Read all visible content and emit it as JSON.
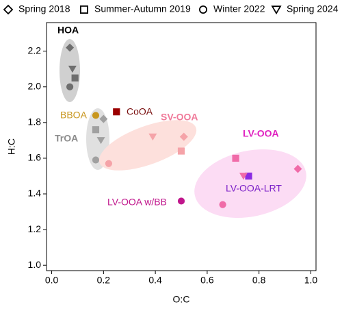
{
  "chart_data": {
    "type": "scatter",
    "xlabel": "O:C",
    "ylabel": "H:C",
    "xlim": [
      -0.02,
      1.02
    ],
    "ylim": [
      0.97,
      2.36
    ],
    "xticks": [
      {
        "value": 0,
        "label": "0.0"
      },
      0.2,
      0.4,
      0.6,
      0.8,
      {
        "value": 1,
        "label": "1.0"
      }
    ],
    "yticks": [
      {
        "value": 1,
        "label": "1.0"
      },
      1.2,
      1.4,
      1.6,
      1.8,
      {
        "value": 2,
        "label": "2.0"
      },
      2.2
    ],
    "series": [
      {
        "name": "Spring 2018",
        "marker": "diamond",
        "x": [
          0.07,
          0.2,
          0.51,
          0.95
        ],
        "y": [
          2.22,
          1.82,
          1.72,
          1.54
        ],
        "colors": [
          "#6e6e6e",
          "#a0a0a0",
          "#f5a3a8",
          "#f06ba8"
        ]
      },
      {
        "name": "Summer-Autumn 2019",
        "marker": "square",
        "x": [
          0.09,
          0.17,
          0.25,
          0.5,
          0.71,
          0.76
        ],
        "y": [
          2.05,
          1.76,
          1.86,
          1.64,
          1.6,
          1.5
        ],
        "colors": [
          "#6e6e6e",
          "#a0a0a0",
          "#9b0000",
          "#f5a3a8",
          "#f06ba8",
          "#8a2be2"
        ]
      },
      {
        "name": "Winter 2022",
        "marker": "circle",
        "x": [
          0.07,
          0.17,
          0.17,
          0.22,
          0.5,
          0.66
        ],
        "y": [
          2.0,
          1.84,
          1.59,
          1.57,
          1.36,
          1.34
        ],
        "colors": [
          "#6e6e6e",
          "#c8961e",
          "#a0a0a0",
          "#f5a3a8",
          "#c0168c",
          "#f06ba8"
        ]
      },
      {
        "name": "Spring 2024",
        "marker": "triangle-down",
        "x": [
          0.08,
          0.19,
          0.39,
          0.74
        ],
        "y": [
          2.1,
          1.7,
          1.72,
          1.5
        ],
        "colors": [
          "#6e6e6e",
          "#a0a0a0",
          "#f5a3a8",
          "#f06ba8"
        ]
      }
    ],
    "annotations": [
      {
        "text": "HOA",
        "color": "#000000"
      },
      {
        "text": "BBOA",
        "color": "#c8961e"
      },
      {
        "text": "CoOA",
        "color": "#7a1010"
      },
      {
        "text": "TrOA",
        "color": "#8c8c8c"
      },
      {
        "text": "SV-OOA",
        "color": "#f07a9a"
      },
      {
        "text": "LV-OOA",
        "color": "#e020c0"
      },
      {
        "text": "LV-OOA-LRT",
        "color": "#7b1fc8"
      },
      {
        "text": "LV-OOA w/BB",
        "color": "#c0168c"
      }
    ]
  }
}
